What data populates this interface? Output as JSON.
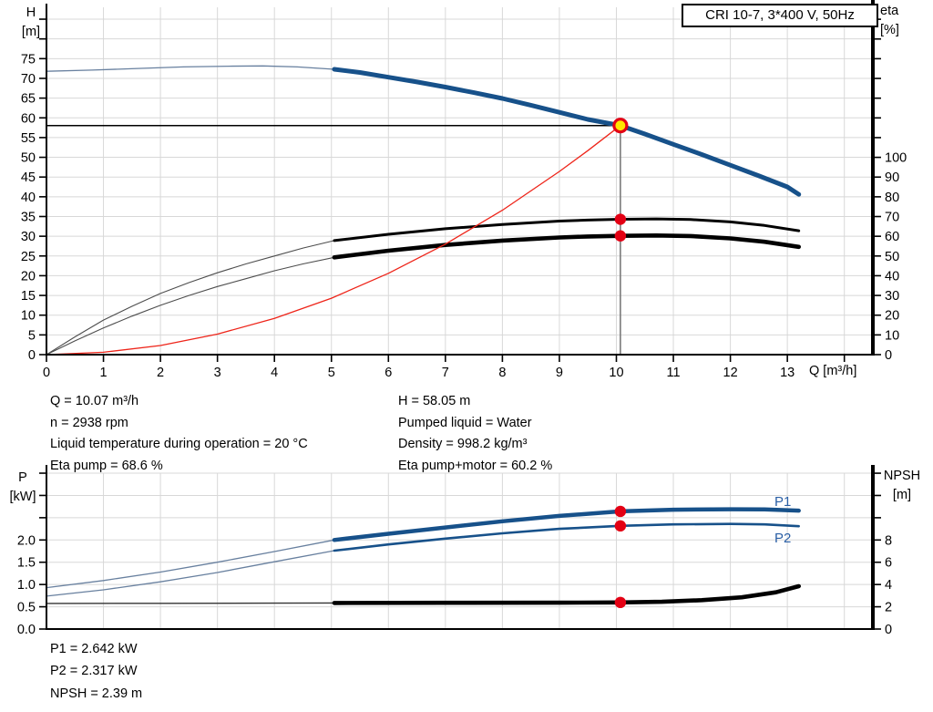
{
  "title_box": "CRI 10-7, 3*400 V, 50Hz",
  "colors": {
    "curve_blue": "#17518a",
    "thin_blue": "#68809f",
    "red": "#ee2419",
    "thin_gray": "#4d4d4d",
    "black": "#000000",
    "grid": "#d8d8d8",
    "duty_fill": "#ffe600",
    "duty_ring": "#e30014",
    "dot_red": "#e30014",
    "duty_line_v": "#7a7a7a",
    "label_blue": "#2a5fa5"
  },
  "annotations": {
    "left": [
      "Q = 10.07 m³/h",
      "n = 2938 rpm",
      "Liquid temperature during operation = 20 °C",
      "Eta pump = 68.6 %"
    ],
    "right": [
      "H = 58.05 m",
      "Pumped liquid = Water",
      "Density = 998.2 kg/m³",
      "Eta pump+motor = 60.2 %"
    ],
    "bottom": [
      "P1 = 2.642 kW",
      "P2 = 2.317 kW",
      "NPSH = 2.39 m"
    ]
  },
  "chart_data": [
    {
      "type": "line",
      "title": "CRI 10-7, 3*400 V, 50Hz",
      "x": {
        "label": "Q [m³/h]",
        "min": 0,
        "max": 14.5,
        "ticks": [
          {
            "v": 0,
            "label": "0"
          },
          {
            "v": 1,
            "label": "1"
          },
          {
            "v": 2,
            "label": "2"
          },
          {
            "v": 3,
            "label": "3"
          },
          {
            "v": 4,
            "label": "4"
          },
          {
            "v": 5,
            "label": "5"
          },
          {
            "v": 6,
            "label": "6"
          },
          {
            "v": 7,
            "label": "7"
          },
          {
            "v": 8,
            "label": "8"
          },
          {
            "v": 9,
            "label": "9"
          },
          {
            "v": 10,
            "label": "10"
          },
          {
            "v": 11,
            "label": "11"
          },
          {
            "v": 12,
            "label": "12"
          },
          {
            "v": 13,
            "label": "13"
          },
          {
            "v": 14,
            "label": ""
          }
        ]
      },
      "y_left": {
        "name": "H",
        "unit": "[m]",
        "min": 0,
        "max": 88,
        "ticks": [
          {
            "v": 0,
            "label": "0"
          },
          {
            "v": 5,
            "label": "5"
          },
          {
            "v": 10,
            "label": "10"
          },
          {
            "v": 15,
            "label": "15"
          },
          {
            "v": 20,
            "label": "20"
          },
          {
            "v": 25,
            "label": "25"
          },
          {
            "v": 30,
            "label": "30"
          },
          {
            "v": 35,
            "label": "35"
          },
          {
            "v": 40,
            "label": "40"
          },
          {
            "v": 45,
            "label": "45"
          },
          {
            "v": 50,
            "label": "50"
          },
          {
            "v": 55,
            "label": "55"
          },
          {
            "v": 60,
            "label": "60"
          },
          {
            "v": 65,
            "label": "65"
          },
          {
            "v": 70,
            "label": "70"
          },
          {
            "v": 75,
            "label": "75"
          },
          {
            "v": 80,
            "label": ""
          },
          {
            "v": 85,
            "label": ""
          }
        ]
      },
      "y_right": {
        "name": "eta",
        "unit": "[%]",
        "min": 0,
        "max": 180,
        "ticks": [
          {
            "v": 0,
            "label": "0"
          },
          {
            "v": 10,
            "label": "10"
          },
          {
            "v": 20,
            "label": "20"
          },
          {
            "v": 30,
            "label": "30"
          },
          {
            "v": 40,
            "label": "40"
          },
          {
            "v": 50,
            "label": "50"
          },
          {
            "v": 60,
            "label": "60"
          },
          {
            "v": 70,
            "label": "70"
          },
          {
            "v": 80,
            "label": "80"
          },
          {
            "v": 90,
            "label": "90"
          },
          {
            "v": 100,
            "label": "100"
          },
          {
            "v": 110,
            "label": ""
          },
          {
            "v": 120,
            "label": ""
          },
          {
            "v": 130,
            "label": ""
          },
          {
            "v": 140,
            "label": ""
          },
          {
            "v": 150,
            "label": ""
          },
          {
            "v": 160,
            "label": ""
          },
          {
            "v": 170,
            "label": ""
          }
        ]
      },
      "duty_point": {
        "q": 10.07,
        "h": 58.05
      },
      "dots": [
        {
          "q": 10.07,
          "axis": "eta",
          "v": 68.6
        },
        {
          "q": 10.07,
          "axis": "eta",
          "v": 60.2
        }
      ],
      "series": [
        {
          "id": "qh-curve-thin",
          "axis": "H",
          "style": "blue_thin",
          "points": [
            [
              0,
              71.8
            ],
            [
              0.8,
              72.1
            ],
            [
              1.6,
              72.5
            ],
            [
              2.4,
              72.9
            ],
            [
              3.2,
              73.1
            ],
            [
              3.8,
              73.15
            ],
            [
              4.4,
              72.9
            ],
            [
              5.05,
              72.3
            ]
          ]
        },
        {
          "id": "qh-curve",
          "axis": "H",
          "style": "blue_thick",
          "points": [
            [
              5.05,
              72.3
            ],
            [
              5.5,
              71.5
            ],
            [
              6,
              70.3
            ],
            [
              6.5,
              69.1
            ],
            [
              7,
              67.8
            ],
            [
              7.5,
              66.4
            ],
            [
              8,
              64.9
            ],
            [
              8.5,
              63.2
            ],
            [
              9,
              61.4
            ],
            [
              9.5,
              59.6
            ],
            [
              10.07,
              58.05
            ],
            [
              10.5,
              55.9
            ],
            [
              11,
              53.3
            ],
            [
              11.5,
              50.7
            ],
            [
              12,
              48.0
            ],
            [
              12.5,
              45.3
            ],
            [
              13,
              42.5
            ],
            [
              13.2,
              40.6
            ]
          ]
        },
        {
          "id": "eta-pump-curve-thin",
          "axis": "eta",
          "style": "gray_thin",
          "points": [
            [
              0,
              0
            ],
            [
              0.5,
              9
            ],
            [
              1,
              17.5
            ],
            [
              1.5,
              24.5
            ],
            [
              2,
              31
            ],
            [
              2.5,
              36.5
            ],
            [
              3,
              41.5
            ],
            [
              3.5,
              46
            ],
            [
              4,
              50
            ],
            [
              4.5,
              54
            ],
            [
              5.05,
              57.8
            ]
          ]
        },
        {
          "id": "eta-pump-curve",
          "axis": "eta",
          "style": "black_med",
          "points": [
            [
              5.05,
              57.8
            ],
            [
              6,
              61
            ],
            [
              7,
              63.8
            ],
            [
              8,
              66
            ],
            [
              9,
              67.7
            ],
            [
              9.5,
              68.2
            ],
            [
              10.07,
              68.6
            ],
            [
              10.7,
              68.8
            ],
            [
              11.3,
              68.5
            ],
            [
              12,
              67.3
            ],
            [
              12.6,
              65.5
            ],
            [
              13.2,
              62.8
            ]
          ]
        },
        {
          "id": "eta-pump-motor-curve-thin",
          "axis": "eta",
          "style": "gray_thin",
          "points": [
            [
              0,
              0
            ],
            [
              0.5,
              7
            ],
            [
              1,
              13.5
            ],
            [
              1.5,
              19.5
            ],
            [
              2,
              25
            ],
            [
              2.5,
              30
            ],
            [
              3,
              34.5
            ],
            [
              3.5,
              38.5
            ],
            [
              4,
              42.5
            ],
            [
              4.5,
              46
            ],
            [
              5.05,
              49.3
            ]
          ]
        },
        {
          "id": "eta-pump-motor-curve",
          "axis": "eta",
          "style": "black_thick",
          "points": [
            [
              5.05,
              49.3
            ],
            [
              6,
              52.7
            ],
            [
              7,
              55.6
            ],
            [
              8,
              57.8
            ],
            [
              9,
              59.4
            ],
            [
              9.5,
              59.9
            ],
            [
              10.07,
              60.2
            ],
            [
              10.7,
              60.4
            ],
            [
              11.3,
              60.1
            ],
            [
              12,
              58.9
            ],
            [
              12.6,
              57.2
            ],
            [
              13.2,
              54.6
            ]
          ]
        },
        {
          "id": "system-curve",
          "axis": "H",
          "style": "red_thin",
          "points": [
            [
              0,
              0
            ],
            [
              1,
              0.6
            ],
            [
              2,
              2.3
            ],
            [
              3,
              5.2
            ],
            [
              4,
              9.2
            ],
            [
              5,
              14.3
            ],
            [
              6,
              20.6
            ],
            [
              7,
              28.0
            ],
            [
              8,
              36.6
            ],
            [
              9,
              46.4
            ],
            [
              9.5,
              51.7
            ],
            [
              10.07,
              58.05
            ]
          ]
        }
      ]
    },
    {
      "type": "line",
      "x": {
        "label": "",
        "min": 0,
        "max": 14.5,
        "ticks": [
          {
            "v": 1,
            "label": ""
          },
          {
            "v": 2,
            "label": ""
          },
          {
            "v": 3,
            "label": ""
          },
          {
            "v": 4,
            "label": ""
          },
          {
            "v": 5,
            "label": ""
          },
          {
            "v": 6,
            "label": ""
          },
          {
            "v": 7,
            "label": ""
          },
          {
            "v": 8,
            "label": ""
          },
          {
            "v": 9,
            "label": ""
          },
          {
            "v": 10,
            "label": ""
          },
          {
            "v": 11,
            "label": ""
          },
          {
            "v": 12,
            "label": ""
          },
          {
            "v": 13,
            "label": ""
          },
          {
            "v": 14,
            "label": ""
          }
        ]
      },
      "y_left": {
        "name": "P",
        "unit": "[kW]",
        "min": 0,
        "max": 3.5,
        "ticks": [
          {
            "v": 0,
            "label": "0.0"
          },
          {
            "v": 0.5,
            "label": "0.5"
          },
          {
            "v": 1,
            "label": "1.0"
          },
          {
            "v": 1.5,
            "label": "1.5"
          },
          {
            "v": 2,
            "label": "2.0"
          },
          {
            "v": 2.5,
            "label": ""
          },
          {
            "v": 3,
            "label": ""
          },
          {
            "v": 3.5,
            "label": ""
          }
        ]
      },
      "y_right": {
        "name": "NPSH",
        "unit": "[m]",
        "min": 0,
        "max": 14,
        "ticks": [
          {
            "v": 0,
            "label": "0"
          },
          {
            "v": 2,
            "label": "2"
          },
          {
            "v": 4,
            "label": "4"
          },
          {
            "v": 6,
            "label": "6"
          },
          {
            "v": 8,
            "label": "8"
          },
          {
            "v": 10,
            "label": ""
          },
          {
            "v": 12,
            "label": ""
          },
          {
            "v": 14,
            "label": ""
          }
        ]
      },
      "series_labels": [
        {
          "text": "P1"
        },
        {
          "text": "P2"
        }
      ],
      "dots": [
        {
          "q": 10.07,
          "axis": "P",
          "v": 2.642
        },
        {
          "q": 10.07,
          "axis": "P",
          "v": 2.317
        },
        {
          "q": 10.07,
          "axis": "NPSH",
          "v": 2.39
        }
      ],
      "series": [
        {
          "id": "p1-curve-thin",
          "axis": "P",
          "style": "blue_thin",
          "points": [
            [
              0,
              0.93
            ],
            [
              1,
              1.09
            ],
            [
              2,
              1.28
            ],
            [
              3,
              1.5
            ],
            [
              4,
              1.74
            ],
            [
              5.05,
              2.0
            ]
          ]
        },
        {
          "id": "p1-curve",
          "axis": "P",
          "style": "blue_thick45",
          "points": [
            [
              5.05,
              2.0
            ],
            [
              6,
              2.14
            ],
            [
              7,
              2.28
            ],
            [
              8,
              2.42
            ],
            [
              9,
              2.54
            ],
            [
              10.07,
              2.642
            ],
            [
              11,
              2.68
            ],
            [
              12,
              2.69
            ],
            [
              12.6,
              2.685
            ],
            [
              13.2,
              2.66
            ]
          ]
        },
        {
          "id": "p2-curve-thin",
          "axis": "P",
          "style": "blue_thin",
          "points": [
            [
              0,
              0.74
            ],
            [
              1,
              0.88
            ],
            [
              2,
              1.06
            ],
            [
              3,
              1.27
            ],
            [
              4,
              1.51
            ],
            [
              5.05,
              1.76
            ]
          ]
        },
        {
          "id": "p2-curve",
          "axis": "P",
          "style": "blue_med",
          "points": [
            [
              5.05,
              1.76
            ],
            [
              6,
              1.9
            ],
            [
              7,
              2.03
            ],
            [
              8,
              2.15
            ],
            [
              9,
              2.25
            ],
            [
              10.07,
              2.317
            ],
            [
              11,
              2.35
            ],
            [
              12,
              2.36
            ],
            [
              12.6,
              2.35
            ],
            [
              13.2,
              2.31
            ]
          ]
        },
        {
          "id": "npsh-curve-thin",
          "axis": "NPSH",
          "style": "dark_thin",
          "points": [
            [
              0,
              2.3
            ],
            [
              2,
              2.31
            ],
            [
              4,
              2.33
            ],
            [
              5.05,
              2.34
            ]
          ]
        },
        {
          "id": "npsh-curve",
          "axis": "NPSH",
          "style": "black_thick",
          "points": [
            [
              5.05,
              2.34
            ],
            [
              7,
              2.36
            ],
            [
              9,
              2.37
            ],
            [
              10.07,
              2.39
            ],
            [
              10.8,
              2.45
            ],
            [
              11.5,
              2.6
            ],
            [
              12.2,
              2.85
            ],
            [
              12.8,
              3.3
            ],
            [
              13.2,
              3.85
            ]
          ]
        }
      ]
    }
  ]
}
